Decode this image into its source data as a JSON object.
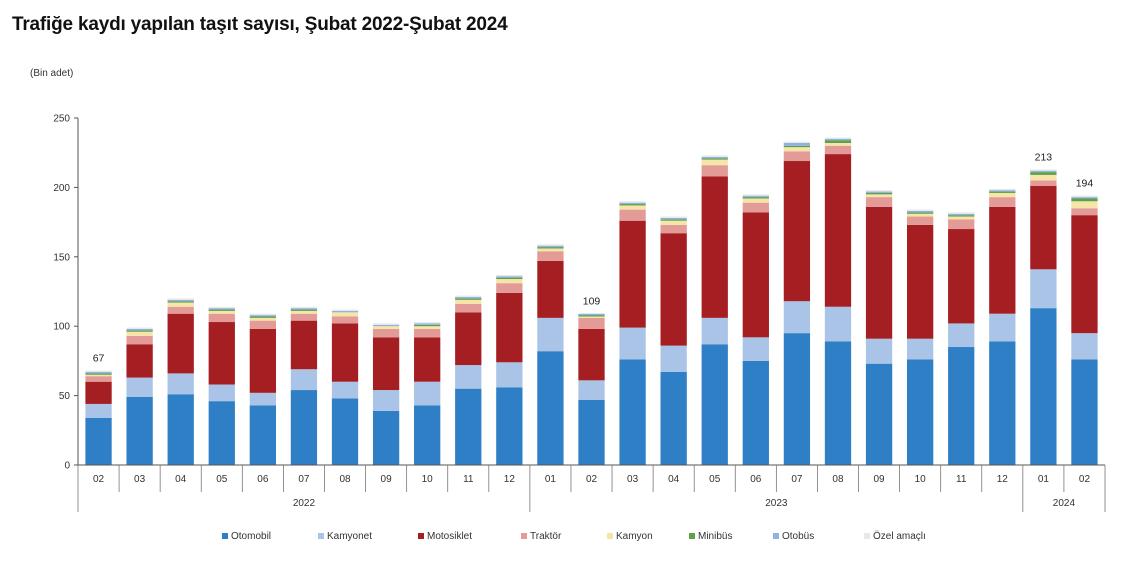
{
  "chart_data": {
    "type": "bar",
    "stacked": true,
    "title": "Trafiğe kaydı yapılan taşıt sayısı, Şubat 2022-Şubat 2024",
    "ylabel": "(Bin adet)",
    "ylim": [
      0,
      250
    ],
    "yticks": [
      0,
      50,
      100,
      150,
      200,
      250
    ],
    "grid": false,
    "legend": "bottom",
    "categories": [
      "02",
      "03",
      "04",
      "05",
      "06",
      "07",
      "08",
      "09",
      "10",
      "11",
      "12",
      "01",
      "02",
      "03",
      "04",
      "05",
      "06",
      "07",
      "08",
      "09",
      "10",
      "11",
      "12",
      "01",
      "02"
    ],
    "years": [
      {
        "label": "2022",
        "start": 0,
        "end": 10
      },
      {
        "label": "2023",
        "start": 11,
        "end": 22
      },
      {
        "label": "2024",
        "start": 23,
        "end": 24
      }
    ],
    "total_labels": [
      {
        "index": 0,
        "text": "67"
      },
      {
        "index": 12,
        "text": "109"
      },
      {
        "index": 23,
        "text": "213"
      },
      {
        "index": 24,
        "text": "194"
      }
    ],
    "series": [
      {
        "name": "Otomobil",
        "color": "#2F7FC6",
        "values": [
          34,
          49,
          51,
          46,
          43,
          54,
          48,
          39,
          43,
          55,
          56,
          82,
          47,
          76,
          67,
          87,
          75,
          95,
          89,
          73,
          76,
          85,
          89,
          113,
          76
        ]
      },
      {
        "name": "Kamyonet",
        "color": "#A9C4E6",
        "values": [
          10,
          14,
          15,
          12,
          9,
          15,
          12,
          15,
          17,
          17,
          18,
          24,
          14,
          23,
          19,
          19,
          17,
          23,
          25,
          18,
          15,
          17,
          20,
          28,
          19
        ]
      },
      {
        "name": "Motosiklet",
        "color": "#A51E22",
        "values": [
          16,
          24,
          43,
          45,
          46,
          35,
          42,
          38,
          32,
          38,
          50,
          41,
          37,
          77,
          81,
          102,
          90,
          101,
          110,
          95,
          82,
          68,
          77,
          60,
          85
        ]
      },
      {
        "name": "Traktör",
        "color": "#E39B98",
        "values": [
          4,
          6,
          5,
          6,
          6,
          5,
          5,
          6,
          6,
          6,
          7,
          7,
          8,
          8,
          6,
          8,
          7,
          7,
          6,
          7,
          6,
          7,
          7,
          4,
          5
        ]
      },
      {
        "name": "Kamyon",
        "color": "#F6E4A8",
        "values": [
          1,
          3,
          3,
          2,
          2,
          2,
          3,
          2,
          2,
          3,
          3,
          2,
          1,
          3,
          3,
          4,
          3,
          3,
          2,
          2,
          2,
          2,
          3,
          4,
          5
        ]
      },
      {
        "name": "Minibüs",
        "color": "#5FA04B",
        "values": [
          1,
          1,
          1,
          1,
          1,
          1,
          0,
          0,
          1,
          1,
          1,
          1,
          1,
          1,
          1,
          1,
          1,
          1,
          2,
          1,
          1,
          1,
          1,
          2,
          2
        ]
      },
      {
        "name": "Otobüs",
        "color": "#8DB3E2",
        "values": [
          1,
          1,
          1,
          1,
          1,
          1,
          1,
          1,
          1,
          1,
          1,
          1,
          1,
          1,
          1,
          1,
          1,
          2,
          1,
          1,
          1,
          1,
          1,
          1,
          1
        ]
      },
      {
        "name": "Özel amaçlı",
        "color": "#E8E8E8",
        "values": [
          1,
          1,
          1,
          1,
          1,
          1,
          1,
          1,
          1,
          1,
          1,
          1,
          0,
          1,
          1,
          1,
          1,
          1,
          1,
          1,
          1,
          1,
          1,
          1,
          1
        ]
      }
    ]
  }
}
